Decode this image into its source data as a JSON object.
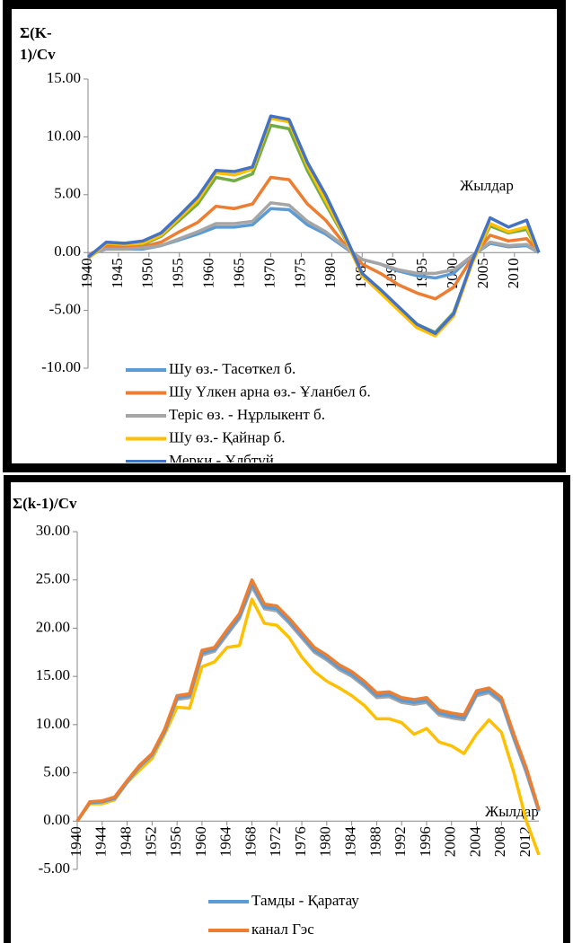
{
  "chart_data": [
    {
      "type": "line",
      "ylabel_lines": [
        "Σ(K-",
        "1)/Cv"
      ],
      "xlabel": "Жылдар",
      "x": [
        1940,
        1943,
        1946,
        1949,
        1952,
        1955,
        1958,
        1961,
        1964,
        1967,
        1970,
        1973,
        1976,
        1979,
        1982,
        1985,
        1988,
        1991,
        1994,
        1997,
        2000,
        2003,
        2006,
        2009,
        2012,
        2014
      ],
      "xlim": [
        1940,
        2014
      ],
      "xticks": [
        1940,
        1945,
        1950,
        1955,
        1960,
        1965,
        1970,
        1975,
        1980,
        1985,
        1990,
        1995,
        2000,
        2005,
        2010
      ],
      "ylim": [
        -10,
        15
      ],
      "yticks": [
        {
          "value": -10,
          "label": "-10.00"
        },
        {
          "value": -5,
          "label": "-5.00"
        },
        {
          "value": 0,
          "label": "0.00"
        },
        {
          "value": 5,
          "label": "5.00"
        },
        {
          "value": 10,
          "label": "10.00"
        },
        {
          "value": 15,
          "label": "15.00"
        }
      ],
      "series": [
        {
          "color": "#70ad47",
          "values": [
            -0.5,
            0.7,
            0.6,
            0.7,
            1.4,
            2.8,
            4.2,
            6.5,
            6.2,
            6.8,
            11,
            10.7,
            7.1,
            4.2,
            1.4,
            -1.9,
            -3.3,
            -4.8,
            -6.2,
            -6.9,
            -5.2,
            -0.9,
            2.3,
            1.7,
            2.0,
            0
          ]
        },
        {
          "name": "Шу өз.- Тасөткел б.",
          "color": "#5b9bd5",
          "values": [
            -0.2,
            0.3,
            0.3,
            0.3,
            0.6,
            1.1,
            1.6,
            2.2,
            2.2,
            2.4,
            3.8,
            3.7,
            2.4,
            1.6,
            0.5,
            -0.6,
            -1,
            -1.6,
            -2,
            -2.2,
            -1.8,
            -0.3,
            0.8,
            0.5,
            0.6,
            0
          ]
        },
        {
          "name": "Шу Үлкен арна өз.- Ұланбел б.",
          "color": "#ed7d31",
          "values": [
            -0.2,
            0.5,
            0.4,
            0.5,
            0.9,
            1.8,
            2.6,
            4,
            3.8,
            4.2,
            6.5,
            6.3,
            4.2,
            2.8,
            0.8,
            -1,
            -1.8,
            -2.8,
            -3.5,
            -4,
            -3,
            -0.5,
            1.5,
            1,
            1.2,
            0
          ]
        },
        {
          "name": "Теріс өз. - Нұрлыкент б.",
          "color": "#a5a5a5",
          "values": [
            -0.2,
            0.3,
            0.3,
            0.4,
            0.6,
            1.2,
            1.8,
            2.5,
            2.5,
            2.7,
            4.3,
            4.1,
            2.7,
            1.8,
            0.6,
            -0.6,
            -1,
            -1.5,
            -1.8,
            -1.8,
            -1.5,
            -0.3,
            0.9,
            0.6,
            0.7,
            0
          ]
        },
        {
          "name": "Шу өз.- Қайнар б.",
          "color": "#ffc000",
          "values": [
            -0.5,
            0.8,
            0.7,
            0.8,
            1.5,
            3,
            4.5,
            6.9,
            6.7,
            7.2,
            11.6,
            11.3,
            7.5,
            4.5,
            1.5,
            -2,
            -3.5,
            -5,
            -6.5,
            -7.2,
            -5.5,
            -1,
            2.5,
            1.8,
            2.2,
            0
          ]
        },
        {
          "name": "Мерки - Ұлбтұй",
          "color": "#4472c4",
          "values": [
            -0.4,
            0.9,
            0.8,
            1,
            1.7,
            3.2,
            4.8,
            7.1,
            7,
            7.4,
            11.8,
            11.5,
            7.8,
            5,
            1.7,
            -1.8,
            -3.2,
            -4.7,
            -6.2,
            -7,
            -5.3,
            -0.8,
            3,
            2.2,
            2.8,
            0
          ]
        }
      ]
    },
    {
      "type": "line",
      "ylabel_lines": [
        "Σ(k-1)/Cv"
      ],
      "xlabel": "Жылдар",
      "x": [
        1940,
        1942,
        1944,
        1946,
        1948,
        1950,
        1952,
        1954,
        1956,
        1958,
        1960,
        1962,
        1964,
        1966,
        1968,
        1970,
        1972,
        1974,
        1976,
        1978,
        1980,
        1982,
        1984,
        1986,
        1988,
        1990,
        1992,
        1994,
        1996,
        1998,
        2000,
        2002,
        2004,
        2006,
        2008,
        2010,
        2012,
        2014
      ],
      "xlim": [
        1940,
        2014
      ],
      "xticks": [
        1940,
        1944,
        1948,
        1952,
        1956,
        1960,
        1964,
        1968,
        1972,
        1976,
        1980,
        1984,
        1988,
        1992,
        1996,
        2000,
        2004,
        2008,
        2012
      ],
      "ylim": [
        -5,
        30
      ],
      "yticks": [
        {
          "value": -5,
          "label": "-5.00"
        },
        {
          "value": 0,
          "label": "0.00"
        },
        {
          "value": 5,
          "label": "5.00"
        },
        {
          "value": 10,
          "label": "10.00"
        },
        {
          "value": 15,
          "label": "15.00"
        },
        {
          "value": 20,
          "label": "20.00"
        },
        {
          "value": 25,
          "label": "25.00"
        },
        {
          "value": 30,
          "label": "30.00"
        }
      ],
      "series": [
        {
          "color": "#ffc000",
          "values": [
            0,
            1.8,
            1.8,
            2.2,
            4,
            5.3,
            6.5,
            9,
            11.8,
            11.7,
            16,
            16.5,
            18,
            18.2,
            23,
            20.5,
            20.3,
            19,
            17,
            15.5,
            14.5,
            13.8,
            13,
            12,
            10.6,
            10.6,
            10.2,
            9,
            9.6,
            8.2,
            7.8,
            7,
            9,
            10.5,
            9.2,
            5,
            0,
            -3.5
          ]
        },
        {
          "color": "#a5a5a5",
          "values": [
            0,
            1.9,
            2,
            2.3,
            4,
            5.6,
            6.8,
            9.2,
            12.6,
            12.8,
            17.2,
            17.6,
            19.3,
            21,
            24.3,
            22,
            21.8,
            20.5,
            19,
            17.5,
            16.7,
            15.7,
            15,
            14,
            12.8,
            12.9,
            12.3,
            12.1,
            12.3,
            11,
            10.7,
            10.5,
            13,
            13.3,
            12.3,
            8.5,
            5,
            1
          ]
        },
        {
          "name": "Тамды - Қаратау",
          "color": "#5b9bd5",
          "values": [
            0,
            1.9,
            2,
            2.4,
            4.1,
            5.7,
            6.9,
            9.3,
            12.8,
            13,
            17.4,
            17.8,
            19.5,
            21.2,
            24.6,
            22.2,
            22,
            20.7,
            19.2,
            17.7,
            16.9,
            15.9,
            15.2,
            14.2,
            13,
            13.1,
            12.5,
            12.3,
            12.5,
            11.2,
            10.9,
            10.7,
            13.2,
            13.5,
            12.5,
            8.7,
            5.2,
            1.1
          ]
        },
        {
          "name": "канал Гэс",
          "color": "#ed7d31",
          "values": [
            0,
            2,
            2.1,
            2.5,
            4.2,
            5.8,
            7,
            9.5,
            13,
            13.2,
            17.7,
            18,
            19.8,
            21.5,
            25,
            22.5,
            22.3,
            21,
            19.5,
            18,
            17.2,
            16.2,
            15.5,
            14.5,
            13.3,
            13.4,
            12.8,
            12.6,
            12.8,
            11.5,
            11.2,
            11,
            13.5,
            13.8,
            12.8,
            9,
            5.5,
            1.2
          ]
        }
      ]
    }
  ]
}
